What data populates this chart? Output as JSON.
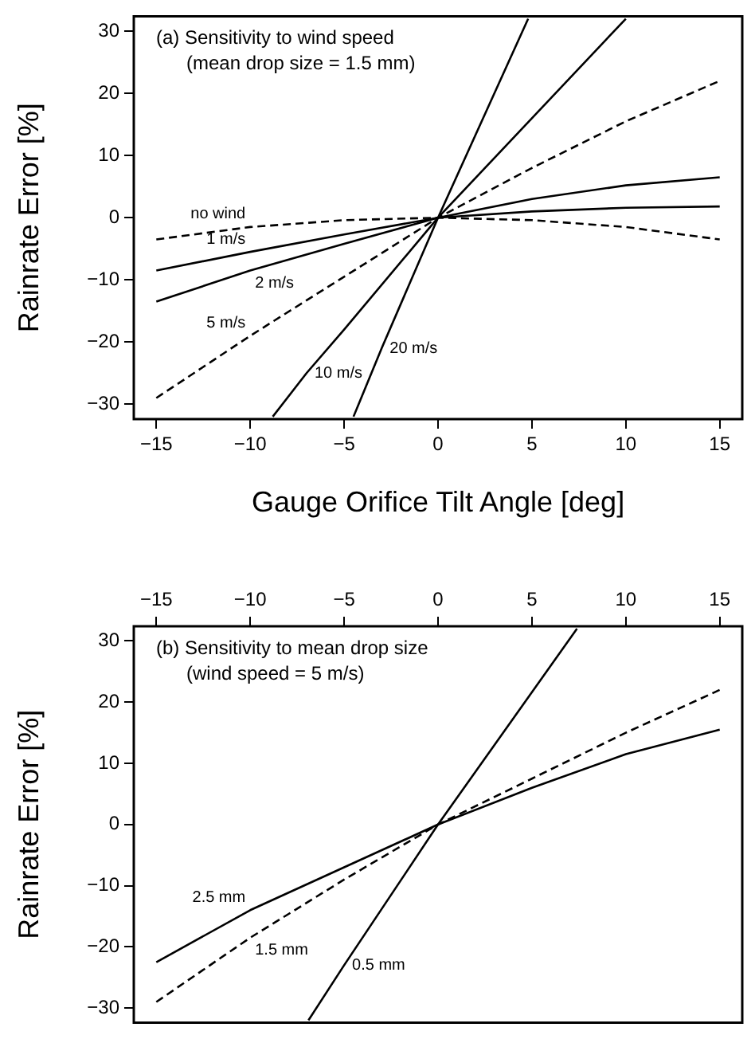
{
  "chart_data": [
    {
      "type": "line",
      "title": "(a) Sensitivity to wind speed",
      "subtitle": "(mean drop size = 1.5 mm)",
      "xlabel": "Gauge Orifice Tilt Angle [deg]",
      "ylabel": "Rainrate Error [%]",
      "xlim": [
        -16.2,
        16.2
      ],
      "xticks": [
        -15,
        -10,
        -5,
        0,
        5,
        10,
        15
      ],
      "ylim": [
        -32.4,
        32.4
      ],
      "yticks": [
        -30,
        -20,
        -10,
        0,
        10,
        20,
        30
      ],
      "marker": "none",
      "series": [
        {
          "name": "no wind",
          "color": "#000000",
          "line_style": "dashed",
          "x": [
            -15,
            -10,
            -5,
            0,
            5,
            10,
            15
          ],
          "values": [
            -3.5,
            -1.5,
            -0.4,
            0,
            -0.4,
            -1.5,
            -3.5
          ]
        },
        {
          "name": "1 m/s",
          "color": "#000000",
          "line_style": "solid",
          "x": [
            -15,
            -10,
            -5,
            0,
            5,
            10,
            15
          ],
          "values": [
            -8.5,
            -5.5,
            -2.7,
            0,
            1,
            1.6,
            1.8
          ]
        },
        {
          "name": "2 m/s",
          "color": "#000000",
          "line_style": "solid",
          "x": [
            -15,
            -10,
            -5,
            0,
            5,
            10,
            15
          ],
          "values": [
            -13.5,
            -8.5,
            -4.2,
            0,
            3,
            5.2,
            6.5
          ]
        },
        {
          "name": "5 m/s",
          "color": "#000000",
          "line_style": "dashed",
          "x": [
            -15,
            -10,
            -5,
            0,
            5,
            10,
            15
          ],
          "values": [
            -29,
            -19,
            -9.5,
            0,
            8,
            15.5,
            22
          ]
        },
        {
          "name": "10 m/s",
          "color": "#000000",
          "line_style": "solid",
          "x": [
            -8.8,
            -7,
            -5,
            0,
            5,
            10
          ],
          "values": [
            -32,
            -25,
            -18,
            0,
            16,
            32
          ]
        },
        {
          "name": "20 m/s",
          "color": "#000000",
          "line_style": "solid",
          "x": [
            -4.5,
            -3,
            0,
            4.8
          ],
          "values": [
            -32,
            -21,
            0,
            32
          ]
        }
      ]
    },
    {
      "type": "line",
      "title": "(b) Sensitivity to mean drop size",
      "subtitle": "(wind speed = 5 m/s)",
      "ylabel": "Rainrate Error [%]",
      "xlim": [
        -16.2,
        16.2
      ],
      "xticks": [
        -15,
        -10,
        -5,
        0,
        5,
        10,
        15
      ],
      "ylim": [
        -32.4,
        32.4
      ],
      "yticks": [
        -30,
        -20,
        -10,
        0,
        10,
        20,
        30
      ],
      "marker": "none",
      "series": [
        {
          "name": "2.5 mm",
          "color": "#000000",
          "line_style": "solid",
          "x": [
            -15,
            -10,
            -5,
            0,
            5,
            10,
            15
          ],
          "values": [
            -22.5,
            -14,
            -7,
            0,
            6,
            11.5,
            15.5
          ]
        },
        {
          "name": "1.5 mm",
          "color": "#000000",
          "line_style": "dashed",
          "x": [
            -15,
            -10,
            -5,
            0,
            5,
            10,
            15
          ],
          "values": [
            -29,
            -18.5,
            -9,
            0,
            7.5,
            15,
            22
          ]
        },
        {
          "name": "0.5 mm",
          "color": "#000000",
          "line_style": "solid",
          "x": [
            -6.9,
            -5,
            0,
            7.4
          ],
          "values": [
            -32,
            -23,
            0,
            32
          ]
        }
      ]
    }
  ]
}
